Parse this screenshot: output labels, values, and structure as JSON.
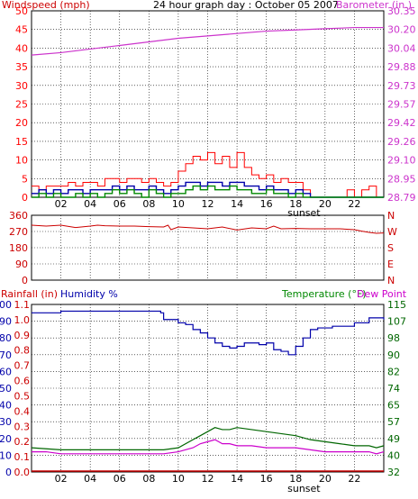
{
  "title": "24 hour graph day : October 05 2007",
  "colors": {
    "wind": "#ff0000",
    "gust_dark": "#0000aa",
    "wind_green": "#008800",
    "barometer": "#cc33cc",
    "direction": "#cc0000",
    "humidity": "#0000aa",
    "temperature": "#006600",
    "dew_point": "#cc00cc",
    "rainfall": "#cc0000",
    "grid": "#000000"
  },
  "chart_data": [
    {
      "type": "line",
      "panel": "wind_barometer",
      "title": "24 hour graph day : October 05 2007",
      "ylabel": "Windspeed (mph)",
      "ylabel_right": "Barometer (in.)",
      "ylim": [
        0,
        50
      ],
      "ylim_right": [
        28.79,
        30.35
      ],
      "xlim": [
        0,
        24
      ],
      "x_ticks": [
        "02",
        "04",
        "06",
        "08",
        "10",
        "12",
        "14",
        "16",
        "18",
        "20",
        "22"
      ],
      "y_ticks": [
        "0",
        "5",
        "10",
        "15",
        "20",
        "25",
        "30",
        "35",
        "40",
        "45",
        "50"
      ],
      "y_ticks_right": [
        "28.79",
        "28.95",
        "29.10",
        "29.26",
        "29.42",
        "29.57",
        "29.73",
        "29.88",
        "30.04",
        "30.20",
        "30.35"
      ],
      "annotation": "sunset",
      "sunset_x": 18.3,
      "series": [
        {
          "role": "barometer",
          "axis": "right",
          "x": [
            0,
            2,
            4,
            6,
            8,
            10,
            12,
            14,
            16,
            18,
            20,
            22,
            24
          ],
          "values": [
            29.98,
            30.0,
            30.03,
            30.06,
            30.09,
            30.12,
            30.14,
            30.16,
            30.18,
            30.19,
            30.2,
            30.21,
            30.21
          ]
        },
        {
          "role": "wind_gust",
          "axis": "left",
          "x": [
            0,
            0.5,
            1,
            1.5,
            2,
            2.5,
            3,
            3.5,
            4,
            4.5,
            5,
            5.5,
            6,
            6.5,
            7,
            7.5,
            8,
            8.5,
            9,
            9.5,
            10,
            10.5,
            11,
            11.5,
            12,
            12.5,
            13,
            13.5,
            14,
            14.5,
            15,
            15.5,
            16,
            16.5,
            17,
            17.5,
            18,
            18.5,
            19,
            21,
            21.5,
            22,
            22.5,
            23,
            23.5,
            24
          ],
          "values": [
            3,
            2,
            3,
            3,
            3,
            4,
            3,
            4,
            4,
            3,
            5,
            5,
            4,
            5,
            5,
            4,
            5,
            4,
            3,
            4,
            7,
            9,
            11,
            10,
            12,
            9,
            11,
            8,
            12,
            8,
            6,
            5,
            6,
            4,
            5,
            4,
            4,
            2,
            0,
            0,
            2,
            0,
            2,
            3,
            0,
            0
          ]
        },
        {
          "role": "wind_speed",
          "axis": "left",
          "x": [
            0,
            0.5,
            1,
            1.5,
            2,
            2.5,
            3,
            3.5,
            4,
            4.5,
            5,
            5.5,
            6,
            6.5,
            7,
            7.5,
            8,
            8.5,
            9,
            9.5,
            10,
            10.5,
            11,
            11.5,
            12,
            12.5,
            13,
            13.5,
            14,
            14.5,
            15,
            15.5,
            16,
            16.5,
            17,
            17.5,
            18,
            18.5,
            19,
            24
          ],
          "values": [
            1,
            2,
            1,
            2,
            1,
            2,
            2,
            1,
            2,
            2,
            2,
            3,
            2,
            3,
            2,
            2,
            3,
            2,
            1,
            2,
            3,
            4,
            4,
            3,
            4,
            4,
            3,
            4,
            4,
            3,
            3,
            2,
            3,
            2,
            2,
            1,
            2,
            1,
            0,
            0
          ]
        },
        {
          "role": "wind_avg",
          "axis": "left",
          "x": [
            0,
            0.5,
            1,
            1.5,
            2,
            2.5,
            3,
            3.5,
            4,
            4.5,
            5,
            5.5,
            6,
            6.5,
            7,
            7.5,
            8,
            8.5,
            9,
            9.5,
            10,
            10.5,
            11,
            11.5,
            12,
            12.5,
            13,
            13.5,
            14,
            14.5,
            15,
            15.5,
            16,
            16.5,
            17,
            17.5,
            18,
            18.5,
            19,
            24
          ],
          "values": [
            0,
            1,
            0,
            1,
            0,
            0,
            1,
            0,
            1,
            0,
            1,
            2,
            1,
            2,
            1,
            0,
            2,
            1,
            0,
            1,
            1,
            2,
            3,
            2,
            3,
            2,
            2,
            3,
            2,
            2,
            1,
            1,
            2,
            1,
            1,
            0,
            1,
            0,
            0,
            0
          ]
        }
      ]
    },
    {
      "type": "line",
      "panel": "wind_direction",
      "ylim": [
        0,
        360
      ],
      "xlim": [
        0,
        24
      ],
      "y_ticks": [
        "0",
        "90",
        "180",
        "270",
        "360"
      ],
      "y_ticks_right": [
        "N",
        "E",
        "S",
        "W",
        "N"
      ],
      "series": [
        {
          "role": "direction",
          "axis": "left",
          "x": [
            0,
            1,
            2,
            3,
            4,
            4.5,
            5,
            6,
            7,
            8,
            9,
            9.3,
            9.5,
            10,
            11,
            12,
            13,
            14,
            15,
            16,
            16.5,
            17,
            18,
            19,
            20,
            21,
            22,
            22.5,
            23,
            23.5,
            24
          ],
          "values": [
            305,
            300,
            305,
            292,
            300,
            305,
            302,
            300,
            300,
            297,
            295,
            305,
            280,
            295,
            290,
            285,
            295,
            278,
            290,
            285,
            300,
            285,
            287,
            285,
            285,
            285,
            280,
            272,
            265,
            260,
            262
          ]
        }
      ]
    },
    {
      "type": "line",
      "panel": "humidity_temperature",
      "ylabel": "Rainfall (in)",
      "ylabel2": "Humidity %",
      "ylabel_right": "Temperature (°F)",
      "ylabel_right2": "Dew Point",
      "ylim": [
        0,
        100
      ],
      "ylim_rain": [
        0.0,
        1.1
      ],
      "ylim_right": [
        32,
        115
      ],
      "xlim": [
        0,
        24
      ],
      "x_ticks": [
        "02",
        "04",
        "06",
        "08",
        "10",
        "12",
        "14",
        "16",
        "18",
        "20",
        "22"
      ],
      "y_ticks_humidity": [
        "0",
        "10",
        "20",
        "30",
        "40",
        "50",
        "60",
        "70",
        "80",
        "90",
        "100"
      ],
      "y_ticks_rain": [
        "0.0",
        "0.1",
        "0.2",
        "0.3",
        "0.4",
        "0.5",
        "0.6",
        "0.7",
        "0.8",
        "0.9",
        "1.0",
        "1.1"
      ],
      "y_ticks_right": [
        "32",
        "40",
        "49",
        "57",
        "65",
        "74",
        "82",
        "90",
        "98",
        "107",
        "115"
      ],
      "annotation": "sunset",
      "sunset_x": 18.3,
      "series": [
        {
          "role": "humidity",
          "axis": "left",
          "x": [
            0,
            1,
            2,
            3,
            4,
            5,
            6,
            7,
            8,
            8.8,
            9,
            10,
            10.5,
            11,
            11.5,
            12,
            12.5,
            13,
            13.5,
            14,
            14.5,
            15,
            15.5,
            16,
            16.5,
            17,
            17.5,
            18,
            18.5,
            19,
            19.5,
            20,
            20.5,
            21,
            22,
            23,
            24
          ],
          "values": [
            95,
            95,
            96,
            96,
            96,
            96,
            96,
            96,
            96,
            95,
            91,
            89,
            88,
            85,
            83,
            80,
            77,
            75,
            74,
            75,
            77,
            77,
            76,
            77,
            73,
            72,
            70,
            75,
            80,
            85,
            86,
            86,
            87,
            87,
            89,
            92,
            91
          ]
        },
        {
          "role": "temperature",
          "axis": "right",
          "x": [
            0,
            2,
            4,
            6,
            8,
            9,
            10,
            11,
            11.5,
            12,
            12.5,
            13,
            13.5,
            14,
            15,
            16,
            17,
            18,
            19,
            20,
            21,
            22,
            23,
            23.5,
            24
          ],
          "values": [
            44,
            43,
            43,
            43,
            43,
            43,
            44,
            48,
            50,
            52,
            54,
            53,
            53,
            54,
            53,
            52,
            51,
            50,
            48,
            47,
            46,
            45,
            45,
            44,
            45
          ]
        },
        {
          "role": "dew_point",
          "axis": "right",
          "x": [
            0,
            1,
            2,
            3,
            4,
            5,
            6,
            7,
            8,
            9,
            10,
            11,
            11.5,
            12,
            12.5,
            13,
            13.5,
            14,
            15,
            16,
            17,
            18,
            19,
            20,
            21,
            22,
            23,
            23.5,
            24
          ],
          "values": [
            42,
            42,
            41,
            41,
            41,
            41,
            41,
            41,
            41,
            41,
            42,
            44,
            46,
            47,
            48,
            46,
            46,
            45,
            45,
            44,
            44,
            44,
            43,
            42,
            42,
            42,
            42,
            41,
            42
          ]
        },
        {
          "role": "rainfall",
          "axis": "rain",
          "x": [
            0,
            24
          ],
          "values": [
            0.0,
            0.0
          ]
        }
      ]
    }
  ]
}
